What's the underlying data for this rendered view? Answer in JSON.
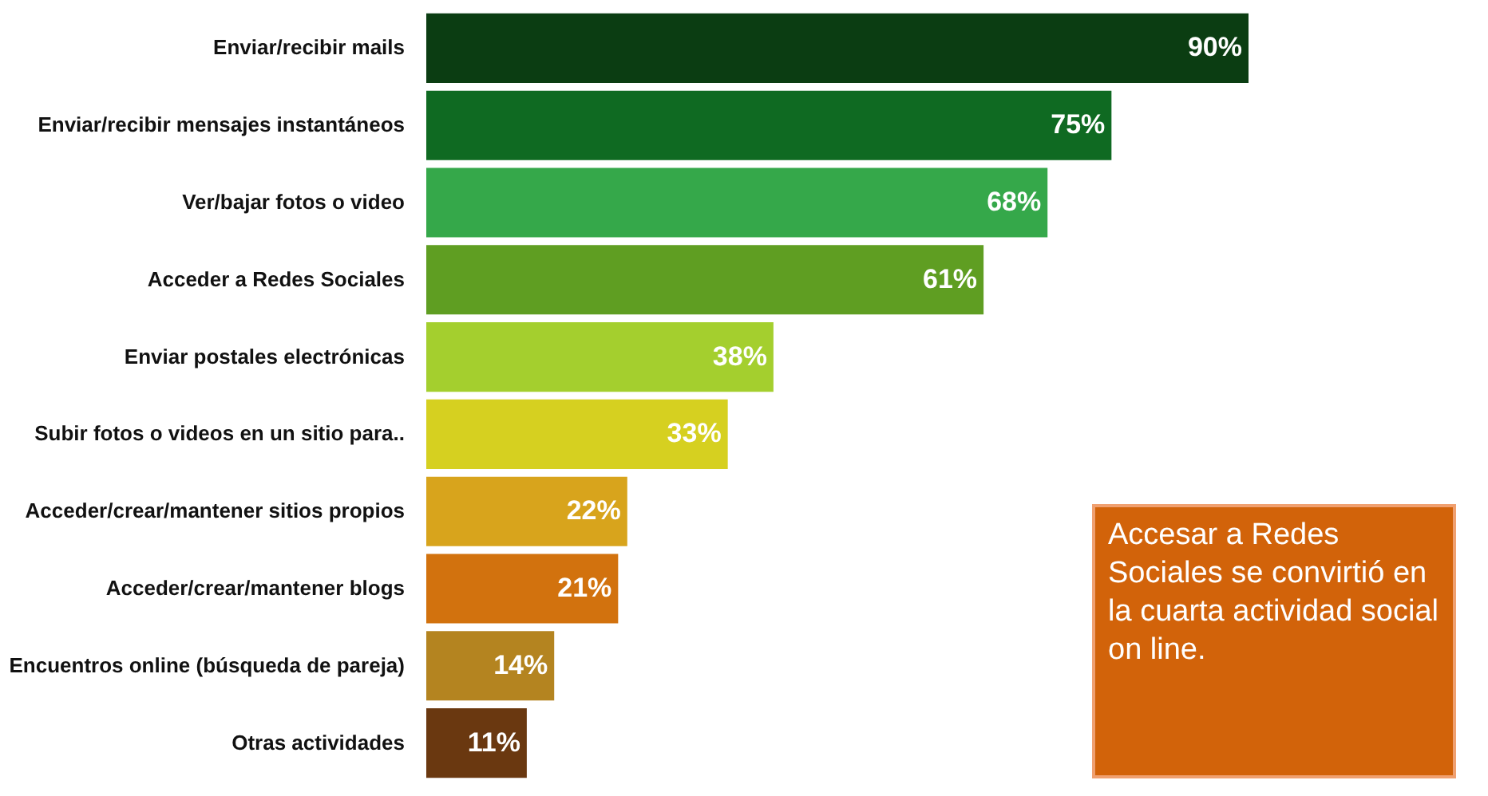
{
  "chart_data": {
    "type": "bar",
    "orientation": "horizontal",
    "categories": [
      "Enviar/recibir mails",
      "Enviar/recibir mensajes instantáneos",
      "Ver/bajar fotos o video",
      "Acceder a Redes Sociales",
      "Enviar postales electrónicas",
      "Subir fotos o videos en un sitio para..",
      "Acceder/crear/mantener sitios propios",
      "Acceder/crear/mantener blogs",
      "Encuentros online (búsqueda de pareja)",
      "Otras actividades"
    ],
    "values": [
      90,
      75,
      68,
      61,
      38,
      33,
      22,
      21,
      14,
      11
    ],
    "value_labels": [
      "90%",
      "75%",
      "68%",
      "61%",
      "38%",
      "33%",
      "22%",
      "21%",
      "14%",
      "11%"
    ],
    "colors": [
      "#0b3d12",
      "#0f6a22",
      "#35a84a",
      "#5f9e22",
      "#a4cf2e",
      "#d6d020",
      "#d8a41c",
      "#d2720e",
      "#b48420",
      "#6a3810"
    ],
    "annotations": [
      "Accesar a Redes Sociales se convirtió en la cuarta actividad social  on line."
    ]
  }
}
